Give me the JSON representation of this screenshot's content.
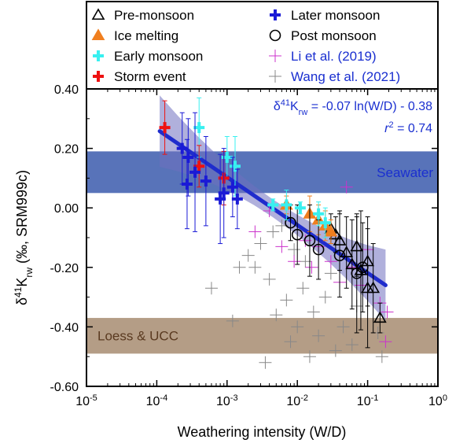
{
  "chart_data": {
    "type": "scatter",
    "title": "",
    "xlabel": "Weathering intensity (W/D)",
    "ylabel_main": "δ",
    "ylabel_sup": "41",
    "ylabel_k": "K",
    "ylabel_sub": "rw",
    "ylabel_rest": " (‰, SRM999c)",
    "x_scale": "log",
    "xlim": [
      1e-05,
      1
    ],
    "ylim": [
      -0.6,
      0.4
    ],
    "x_ticks": [
      {
        "value": 1e-05,
        "base": "10",
        "exp": "-5"
      },
      {
        "value": 0.0001,
        "base": "10",
        "exp": "-4"
      },
      {
        "value": 0.001,
        "base": "10",
        "exp": "-3"
      },
      {
        "value": 0.01,
        "base": "10",
        "exp": "-2"
      },
      {
        "value": 0.1,
        "base": "10",
        "exp": "-1"
      },
      {
        "value": 1,
        "base": "10",
        "exp": "0"
      }
    ],
    "y_ticks": [
      {
        "value": 0.4,
        "label": "0.40"
      },
      {
        "value": 0.2,
        "label": "0.20"
      },
      {
        "value": 0.0,
        "label": "0.00"
      },
      {
        "value": -0.2,
        "label": "-0.20"
      },
      {
        "value": -0.4,
        "label": "-0.40"
      },
      {
        "value": -0.6,
        "label": "-0.60"
      }
    ],
    "grid": false,
    "legend_position": "top",
    "bands": [
      {
        "name": "Seawater",
        "ymin": 0.05,
        "ymax": 0.19,
        "color": "#4f6bb5"
      },
      {
        "name": "Loess & UCC",
        "ymin": -0.49,
        "ymax": -0.37,
        "color": "#b09880"
      }
    ],
    "fit": {
      "eq_prefix": "δ",
      "eq_sup": "41",
      "eq_k": "K",
      "eq_sub": "rw",
      "eq_rest": " = -0.07 ln(W/D) - 0.38",
      "r2_r": "r",
      "r2_sup": "2",
      "r2_rest": " = 0.74",
      "slope": -0.07,
      "intercept": -0.38,
      "x_range": [
        0.00011,
        0.18
      ],
      "color": "#1f2ccc",
      "band_color": "#7070c0"
    },
    "colors": {
      "pre_monsoon": "#000000",
      "ice_melting": "#f07f1f",
      "early_monsoon": "#38f0f0",
      "storm_event": "#ee1111",
      "later_monsoon": "#1a1ad6",
      "post_monsoon": "#000000",
      "li_2019": "#cc33cc",
      "wang_2021": "#888888",
      "label_blue": "#1a2fd0"
    },
    "series": [
      {
        "name": "Pre-monsoon",
        "marker": "triangle-open",
        "color": "#000000",
        "points": [
          [
            0.03,
            -0.07,
            0.05
          ],
          [
            0.035,
            -0.09,
            0.06
          ],
          [
            0.04,
            -0.11,
            0.1
          ],
          [
            0.05,
            -0.15,
            0.12
          ],
          [
            0.06,
            -0.19,
            0.15
          ],
          [
            0.07,
            -0.13,
            0.1
          ],
          [
            0.08,
            -0.21,
            0.2
          ],
          [
            0.1,
            -0.18,
            0.15
          ],
          [
            0.1,
            -0.27,
            0.2
          ],
          [
            0.12,
            -0.27,
            0.15
          ],
          [
            0.15,
            -0.37,
            0.05
          ]
        ]
      },
      {
        "name": "Ice melting",
        "marker": "triangle-filled",
        "color": "#f07f1f",
        "points": [
          [
            0.007,
            0.01,
            0.03
          ],
          [
            0.015,
            -0.02,
            0.06
          ],
          [
            0.02,
            -0.04,
            0.05
          ],
          [
            0.025,
            -0.06,
            0.05
          ],
          [
            0.03,
            -0.08,
            0.04
          ]
        ]
      },
      {
        "name": "Early monsoon",
        "marker": "plus-thick",
        "color": "#38f0f0",
        "points": [
          [
            0.0004,
            0.27,
            0.1
          ],
          [
            0.001,
            0.17,
            0.07
          ],
          [
            0.0013,
            0.14,
            0.1
          ],
          [
            0.0045,
            0.01,
            0.02
          ],
          [
            0.007,
            0.01,
            0.05
          ],
          [
            0.011,
            0.0,
            0.02
          ],
          [
            0.02,
            -0.02,
            0.04
          ],
          [
            0.025,
            -0.05,
            0.05
          ]
        ]
      },
      {
        "name": "Storm event",
        "marker": "plus-thick",
        "color": "#ee1111",
        "points": [
          [
            0.00013,
            0.27,
            0.09
          ],
          [
            0.0004,
            0.14,
            0.07
          ],
          [
            0.0009,
            0.1,
            0.09
          ]
        ]
      },
      {
        "name": "Later monsoon",
        "marker": "plus-thick",
        "color": "#1a1ad6",
        "points": [
          [
            0.00023,
            0.2,
            0.12
          ],
          [
            0.00028,
            0.17,
            0.13
          ],
          [
            0.00027,
            0.08,
            0.15
          ],
          [
            0.00035,
            0.12,
            0.2
          ],
          [
            0.0005,
            0.09,
            0.15
          ],
          [
            0.0008,
            0.03,
            0.15
          ],
          [
            0.0009,
            0.05,
            0.15
          ],
          [
            0.0012,
            0.07,
            0.1
          ],
          [
            0.0014,
            0.03,
            0.1
          ]
        ]
      },
      {
        "name": "Post monsoon",
        "marker": "circle-open",
        "color": "#000000",
        "points": [
          [
            0.008,
            -0.05,
            0.06
          ],
          [
            0.01,
            -0.09,
            0.1
          ],
          [
            0.015,
            -0.11,
            0.12
          ],
          [
            0.02,
            -0.14,
            0.1
          ],
          [
            0.04,
            -0.16,
            0.14
          ],
          [
            0.07,
            -0.22,
            0.2
          ],
          [
            0.085,
            -0.2,
            0.15
          ]
        ]
      },
      {
        "name": "Li et al. (2019)",
        "marker": "plus-thin",
        "color": "#cc33cc",
        "points": [
          [
            0.0025,
            -0.08
          ],
          [
            0.004,
            -0.01
          ],
          [
            0.006,
            -0.13
          ],
          [
            0.009,
            -0.18
          ],
          [
            0.013,
            -0.11
          ],
          [
            0.016,
            -0.2
          ],
          [
            0.02,
            -0.13
          ],
          [
            0.03,
            -0.18
          ],
          [
            0.05,
            0.07
          ],
          [
            0.06,
            -0.2
          ],
          [
            0.08,
            -0.26
          ],
          [
            0.1,
            -0.14
          ],
          [
            0.15,
            -0.32
          ],
          [
            0.18,
            -0.45
          ],
          [
            0.19,
            -0.35
          ],
          [
            0.04,
            -0.25
          ]
        ]
      },
      {
        "name": "Wang et al. (2021)",
        "marker": "plus-thin",
        "color": "#888888",
        "points": [
          [
            0.0006,
            -0.27
          ],
          [
            0.0012,
            -0.38
          ],
          [
            0.0015,
            -0.2
          ],
          [
            0.002,
            -0.16
          ],
          [
            0.003,
            -0.12
          ],
          [
            0.004,
            -0.24
          ],
          [
            0.005,
            -0.36
          ],
          [
            0.006,
            -0.06
          ],
          [
            0.007,
            -0.31
          ],
          [
            0.008,
            -0.45
          ],
          [
            0.009,
            -0.14
          ],
          [
            0.01,
            -0.4
          ],
          [
            0.012,
            -0.27
          ],
          [
            0.015,
            -0.5
          ],
          [
            0.017,
            -0.35
          ],
          [
            0.02,
            -0.43
          ],
          [
            0.025,
            -0.3
          ],
          [
            0.03,
            -0.22
          ],
          [
            0.035,
            -0.48
          ],
          [
            0.045,
            -0.4
          ],
          [
            0.06,
            -0.46
          ],
          [
            0.07,
            -0.33
          ],
          [
            0.16,
            -0.5
          ],
          [
            0.14,
            -0.42
          ],
          [
            0.0035,
            -0.52
          ],
          [
            0.0045,
            -0.08
          ],
          [
            0.0025,
            -0.2
          ],
          [
            0.013,
            -0.18
          ]
        ]
      }
    ]
  }
}
